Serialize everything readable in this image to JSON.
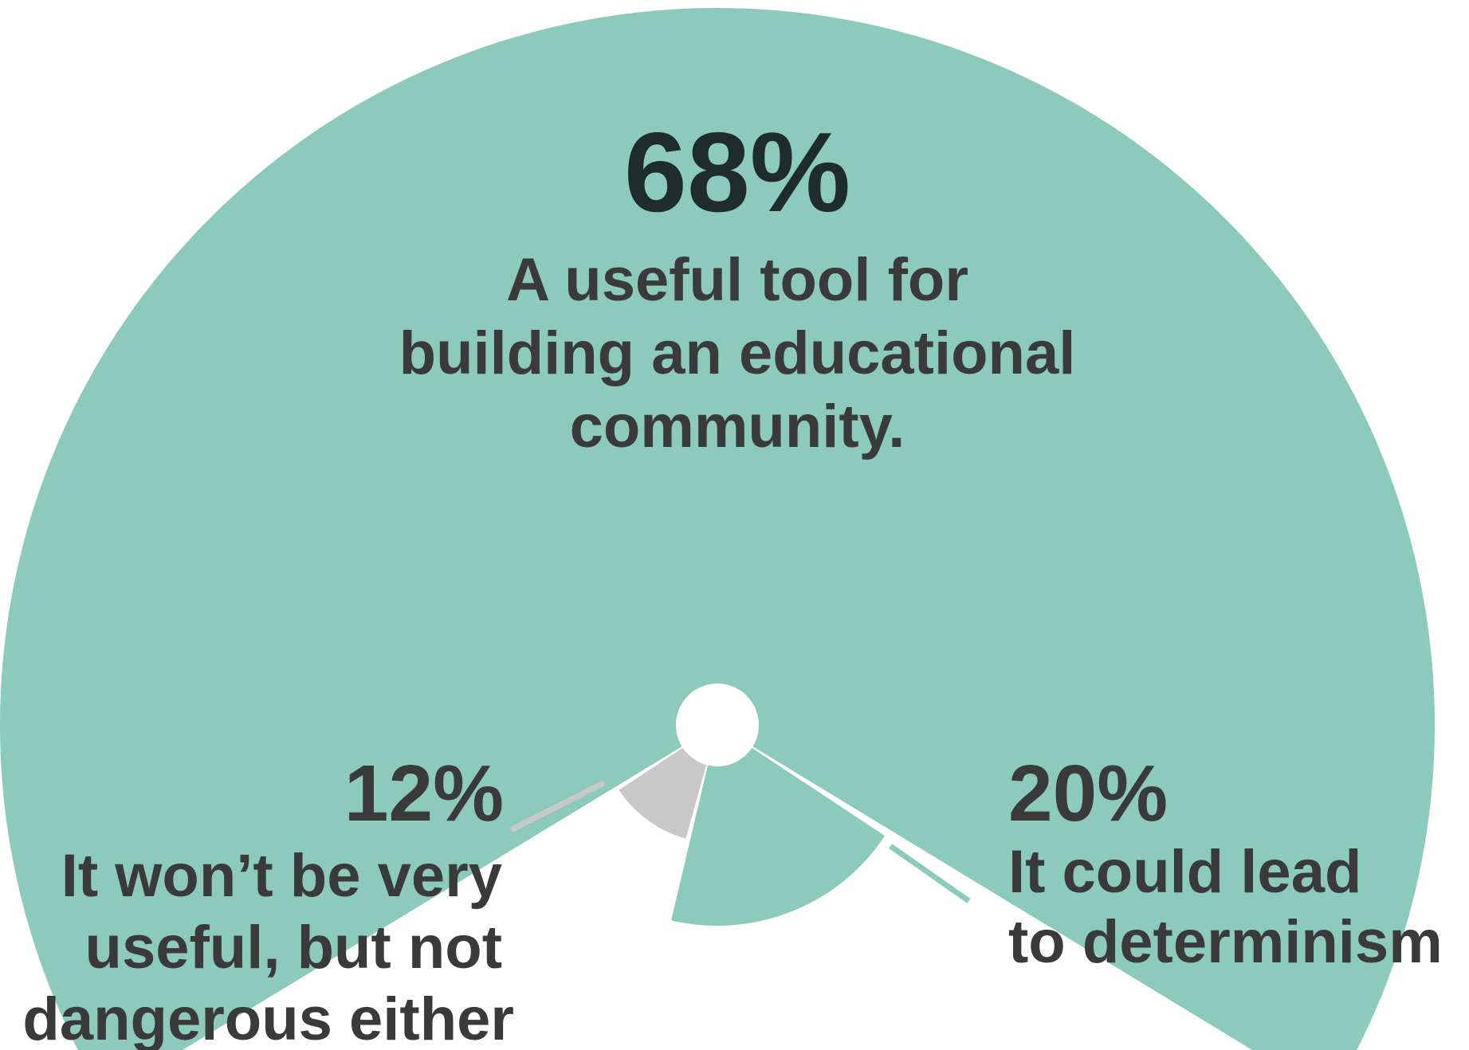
{
  "chart_data": {
    "type": "pie",
    "title": "",
    "slices": [
      {
        "label": "68%",
        "value": 68,
        "text_lines": [
          "A useful tool for",
          "building an educational",
          "community."
        ],
        "color": "#8ccbbc"
      },
      {
        "label": "20%",
        "value": 20,
        "text_lines": [
          "It could lead",
          "to determinism"
        ],
        "color": "#8ccbbc"
      },
      {
        "label": "12%",
        "value": 12,
        "text_lines": [
          "It won’t be very",
          "useful, but not",
          "dangerous either"
        ],
        "color": "#c8c8c8"
      }
    ],
    "colors": {
      "main_value": "#1e2d29",
      "text": "#3a3a3a",
      "teal": "#8ccbbc",
      "gray": "#c8c8c8"
    }
  }
}
